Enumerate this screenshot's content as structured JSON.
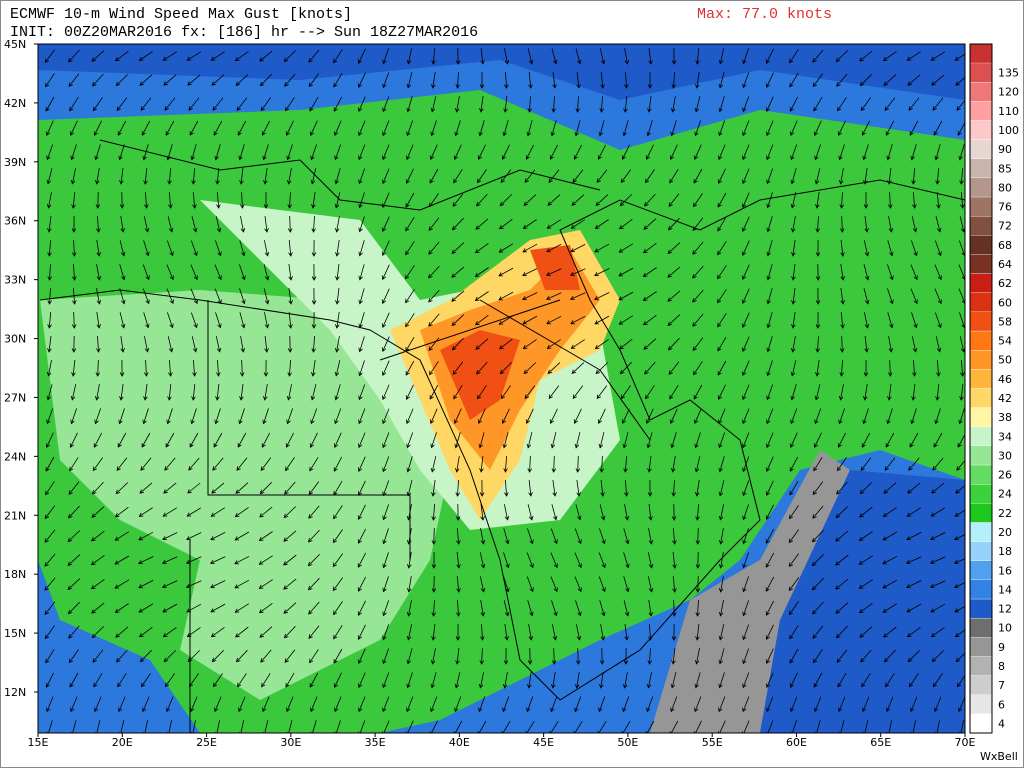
{
  "header": {
    "title": "ECMWF 10-m Wind Speed Max Gust [knots]",
    "init": "INIT: 00Z20MAR2016 fx: [186] hr --> Sun 18Z27MAR2016",
    "max": "Max: 77.0 knots"
  },
  "map": {
    "lat_labels": [
      "45N",
      "42N",
      "39N",
      "36N",
      "33N",
      "30N",
      "27N",
      "24N",
      "21N",
      "18N",
      "15N",
      "12N"
    ],
    "lon_labels": [
      "15E",
      "20E",
      "25E",
      "30E",
      "35E",
      "40E",
      "45E",
      "50E",
      "55E",
      "60E",
      "65E",
      "70E"
    ]
  },
  "colorbar": {
    "levels": [
      4,
      6,
      7,
      8,
      9,
      10,
      12,
      14,
      16,
      18,
      20,
      22,
      24,
      26,
      30,
      34,
      38,
      42,
      46,
      50,
      54,
      58,
      60,
      62,
      64,
      68,
      72,
      76,
      80,
      85,
      90,
      100,
      110,
      120,
      135
    ],
    "colors": [
      "#ffffff",
      "#e6e6e6",
      "#cdcdcd",
      "#b2b2b2",
      "#969696",
      "#6e6e6e",
      "#1e5ac8",
      "#3282e6",
      "#50a0f0",
      "#96d2fa",
      "#b4f0fa",
      "#1ec81e",
      "#3cd23c",
      "#64dc64",
      "#96e696",
      "#c8f5c8",
      "#fff5a5",
      "#ffd764",
      "#ffb43c",
      "#ff9628",
      "#ff7814",
      "#f05014",
      "#dc3214",
      "#c81e14",
      "#783223",
      "#643223",
      "#825040",
      "#a07464",
      "#b4968c",
      "#c8b4aa",
      "#e6d7d2",
      "#ffc8c8",
      "#ffa0a0",
      "#f07878",
      "#dc5050"
    ]
  },
  "footer": {
    "credit": "WxBell"
  }
}
